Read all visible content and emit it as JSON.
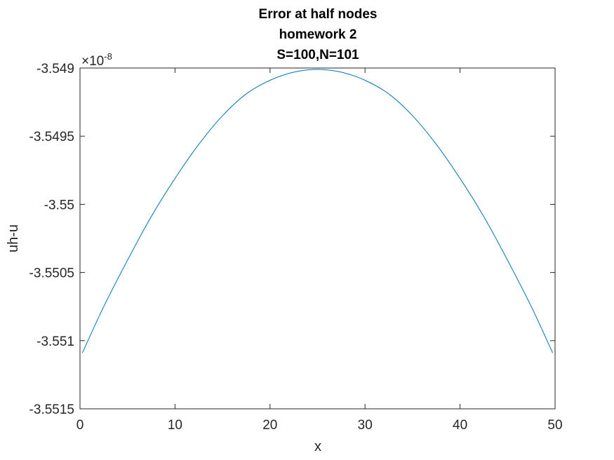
{
  "chart_data": {
    "type": "line",
    "title_lines": [
      "Error at half nodes",
      "homework 2",
      "S=100,N=101"
    ],
    "xlabel": "x",
    "ylabel": "uh-u",
    "xlim": [
      0,
      50
    ],
    "ylim": [
      -3.5515e-08,
      -3.549e-08
    ],
    "x_ticks": [
      0,
      10,
      20,
      30,
      40,
      50
    ],
    "x_tick_labels": [
      "0",
      "10",
      "20",
      "30",
      "40",
      "50"
    ],
    "y_ticks": [
      -3.5515e-08,
      -3.551e-08,
      -3.5505e-08,
      -3.55e-08,
      -3.5495e-08,
      -3.549e-08
    ],
    "y_tick_labels": [
      "-3.5515",
      "-3.551",
      "-3.5505",
      "-3.55",
      "-3.5495",
      "-3.549"
    ],
    "y_exponent": {
      "base": "×10",
      "power": "-8"
    },
    "grid": false,
    "series": [
      {
        "color": "#0072BD",
        "x": [
          0.25,
          2.5,
          5,
          7.5,
          10,
          12.5,
          15,
          17.5,
          20,
          22.5,
          25,
          27.5,
          30,
          32.5,
          35,
          37.5,
          40,
          42.5,
          45,
          47.5,
          49.75
        ],
        "y": [
          -3.55109e-08,
          -3.55075e-08,
          -3.55041e-08,
          -3.55009e-08,
          -3.54981e-08,
          -3.54956e-08,
          -3.54935e-08,
          -3.54919e-08,
          -3.54909e-08,
          -3.54903e-08,
          -3.54901e-08,
          -3.54903e-08,
          -3.54909e-08,
          -3.54919e-08,
          -3.54935e-08,
          -3.54956e-08,
          -3.54981e-08,
          -3.55009e-08,
          -3.55041e-08,
          -3.55075e-08,
          -3.55109e-08
        ]
      }
    ]
  }
}
